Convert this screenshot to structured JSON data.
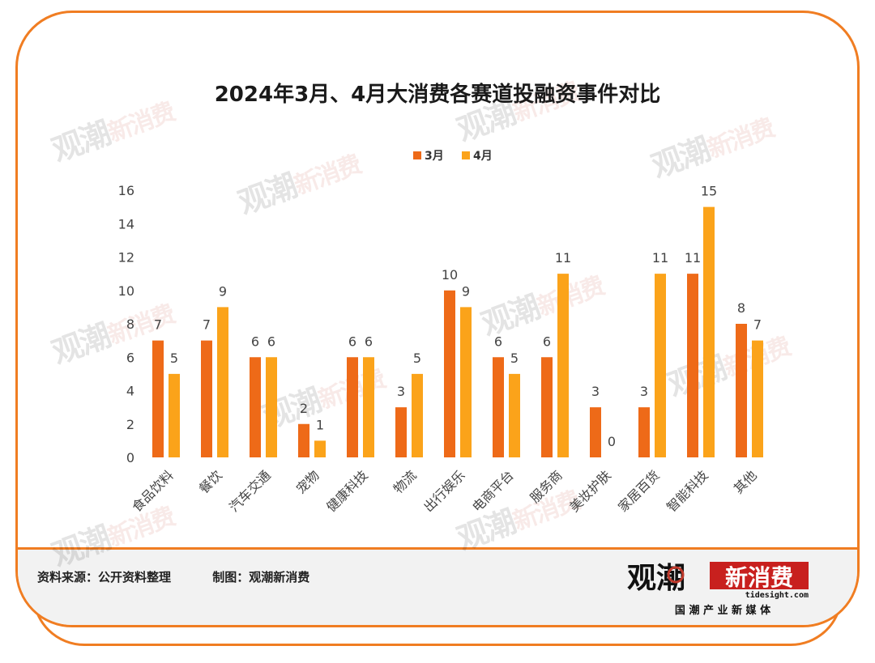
{
  "title": "2024年3月、4月大消费各赛道投融资事件对比",
  "source_label": "资料来源：公开资料整理",
  "maker_label": "制图：观潮新消费",
  "logo": {
    "name_part1": "观潮",
    "name_part2": "新消费",
    "domain": "tidesight.com",
    "tagline": "国 潮 产 业 新 媒 体"
  },
  "colors": {
    "march": "#ee6a18",
    "april": "#fba31a",
    "border": "#f07d22"
  },
  "chart_data": {
    "type": "bar",
    "title": "2024年3月、4月大消费各赛道投融资事件对比",
    "categories": [
      "食品饮料",
      "餐饮",
      "汽车交通",
      "宠物",
      "健康科技",
      "物流",
      "出行娱乐",
      "电商平台",
      "服务商",
      "美妆护肤",
      "家居百货",
      "智能科技",
      "其他"
    ],
    "series": [
      {
        "name": "3月",
        "values": [
          7,
          7,
          6,
          2,
          6,
          3,
          10,
          6,
          6,
          3,
          3,
          11,
          8
        ]
      },
      {
        "name": "4月",
        "values": [
          5,
          9,
          6,
          1,
          6,
          5,
          9,
          5,
          11,
          0,
          11,
          15,
          7
        ]
      }
    ],
    "yticks": [
      0,
      2,
      4,
      6,
      8,
      10,
      12,
      14,
      16
    ],
    "ylim": [
      0,
      16
    ],
    "grid": false,
    "legend": "top"
  }
}
